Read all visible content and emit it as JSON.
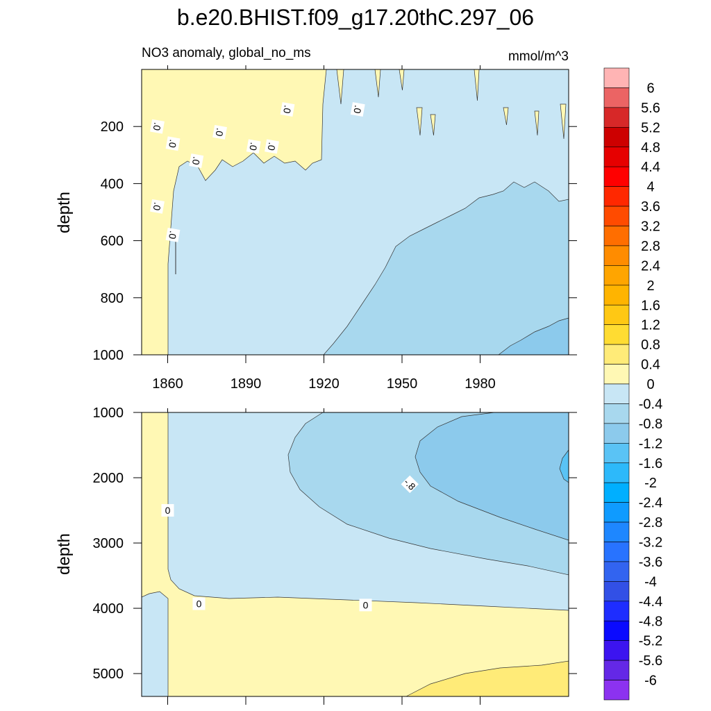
{
  "title": "b.e20.BHIST.f09_g17.20thC.297_06",
  "chart_data": [
    {
      "type": "heatmap",
      "subtitle_left": "NO3 anomaly, global_no_ms",
      "subtitle_right": "mmol/m^3",
      "xlabel": "",
      "ylabel": "depth",
      "xlim": [
        1850,
        2014
      ],
      "ylim": [
        1000,
        0
      ],
      "x_ticks": [
        1860,
        1890,
        1920,
        1950,
        1980
      ],
      "y_ticks": [
        200,
        400,
        600,
        800,
        1000
      ],
      "contour_labels": [
        {
          "text": ".0",
          "x": 1856,
          "y": 200
        },
        {
          "text": ".0",
          "x": 1862,
          "y": 260
        },
        {
          "text": ".0",
          "x": 1871,
          "y": 320
        },
        {
          "text": ".0",
          "x": 1880,
          "y": 220
        },
        {
          "text": ".0",
          "x": 1893,
          "y": 270
        },
        {
          "text": ".0",
          "x": 1900,
          "y": 270
        },
        {
          "text": ".0",
          "x": 1906,
          "y": 140
        },
        {
          "text": ".0",
          "x": 1933,
          "y": 140
        },
        {
          "text": ".0",
          "x": 1856,
          "y": 480
        },
        {
          "text": ".0",
          "x": 1862,
          "y": 580
        }
      ]
    },
    {
      "type": "heatmap",
      "xlabel": "",
      "ylabel": "depth",
      "xlim": [
        1850,
        2014
      ],
      "ylim": [
        5350,
        1000
      ],
      "x_ticks": [
        1860,
        1890,
        1920,
        1950,
        1980
      ],
      "y_ticks": [
        1000,
        2000,
        3000,
        4000,
        5000
      ],
      "contour_labels": [
        {
          "text": "0",
          "x": 1860,
          "y": 2500
        },
        {
          "text": "0",
          "x": 1872,
          "y": 3930
        },
        {
          "text": "0",
          "x": 1936,
          "y": 3950
        },
        {
          "text": "-.8",
          "x": 1953,
          "y": 2100
        }
      ]
    }
  ],
  "colorbar": {
    "levels": [
      "6",
      "5.6",
      "5.2",
      "4.8",
      "4.4",
      "4",
      "3.6",
      "3.2",
      "2.8",
      "2.4",
      "2",
      "1.6",
      "1.2",
      "0.8",
      "0.4",
      "0",
      "-0.4",
      "-0.8",
      "-1.2",
      "-1.6",
      "-2",
      "-2.4",
      "-2.8",
      "-3.2",
      "-3.6",
      "-4",
      "-4.4",
      "-4.8",
      "-5.2",
      "-5.6",
      "-6"
    ],
    "colors": [
      "#FFB4B4",
      "#EB6464",
      "#D72828",
      "#CD0000",
      "#E60000",
      "#FF0000",
      "#FF2800",
      "#FF4B00",
      "#FF6E00",
      "#FF8C00",
      "#FFA500",
      "#FFB400",
      "#FFC814",
      "#FFDC32",
      "#FFEB78",
      "#FFF8B4",
      "#C8E6F5",
      "#A8D8EE",
      "#8CCAEC",
      "#5AC3F5",
      "#2DB9FA",
      "#00AFFF",
      "#0F9BFF",
      "#1E87FF",
      "#2873FF",
      "#3264F0",
      "#3250E6",
      "#1E2DFF",
      "#0A0AFF",
      "#3C14F0",
      "#6428E6",
      "#8C32F0"
    ]
  }
}
